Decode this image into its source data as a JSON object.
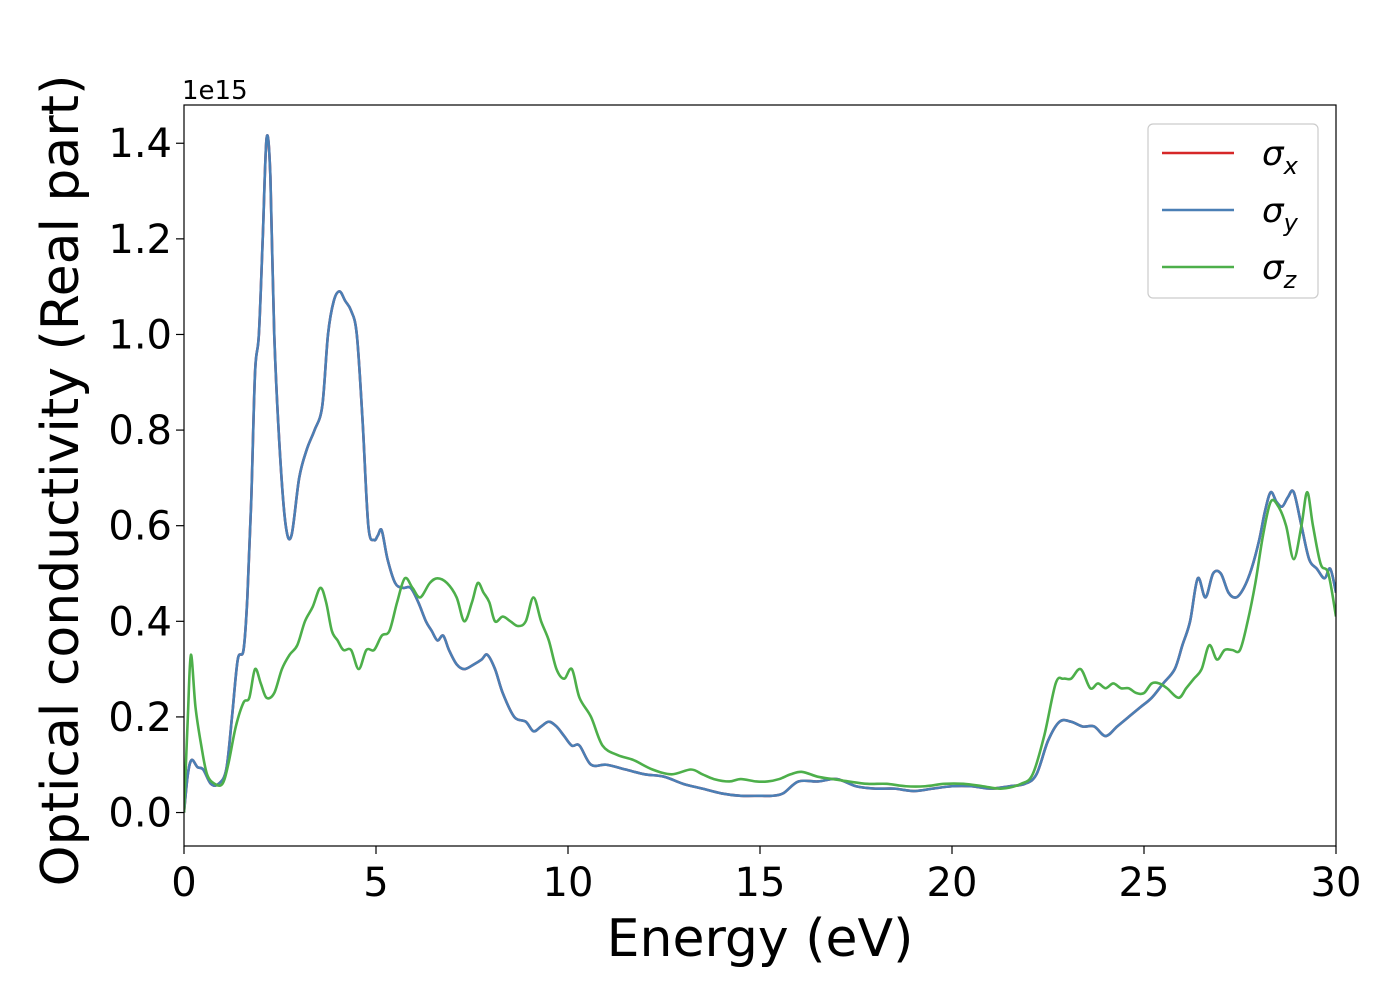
{
  "chart_data": {
    "type": "line",
    "title": "",
    "xlabel": "Energy (eV)",
    "ylabel": "Optical conductivity (Real part)",
    "y_offset_text": "1e15",
    "y_multiplier": 1000000000000000.0,
    "xlim": [
      0,
      30
    ],
    "ylim": [
      -0.07,
      1.48
    ],
    "x_ticks": [
      0,
      5,
      10,
      15,
      20,
      25,
      30
    ],
    "x_tick_labels": [
      "0",
      "5",
      "10",
      "15",
      "20",
      "25",
      "30"
    ],
    "y_ticks": [
      0.0,
      0.2,
      0.4,
      0.6,
      0.8,
      1.0,
      1.2,
      1.4
    ],
    "y_tick_labels": [
      "0.0",
      "0.2",
      "0.4",
      "0.6",
      "0.8",
      "1.0",
      "1.2",
      "1.4"
    ],
    "grid": false,
    "legend_position": "top-right",
    "series": [
      {
        "name": "σx",
        "legend_symbol": "σ",
        "legend_subscript": "x",
        "color": "#d62728",
        "x": [
          0,
          0.1,
          0.2,
          0.35,
          0.5,
          0.7,
          0.9,
          1.1,
          1.25,
          1.4,
          1.55,
          1.65,
          1.75,
          1.85,
          1.95,
          2.05,
          2.15,
          2.25,
          2.35,
          2.5,
          2.65,
          2.8,
          3.0,
          3.2,
          3.4,
          3.6,
          3.75,
          3.9,
          4.05,
          4.2,
          4.35,
          4.5,
          4.65,
          4.8,
          4.95,
          5.05,
          5.15,
          5.3,
          5.5,
          5.7,
          5.9,
          6.1,
          6.3,
          6.45,
          6.6,
          6.75,
          6.9,
          7.1,
          7.3,
          7.55,
          7.75,
          7.9,
          8.1,
          8.3,
          8.6,
          8.9,
          9.1,
          9.3,
          9.5,
          9.7,
          9.9,
          10.1,
          10.3,
          10.6,
          11.0,
          11.5,
          12.0,
          12.5,
          13.0,
          13.5,
          14.0,
          14.5,
          15.0,
          15.3,
          15.6,
          16.0,
          16.5,
          17.0,
          17.5,
          18.0,
          18.5,
          19.0,
          19.5,
          20.0,
          20.5,
          21.0,
          21.5,
          21.9,
          22.2,
          22.5,
          22.8,
          23.1,
          23.4,
          23.7,
          24.0,
          24.3,
          24.6,
          24.9,
          25.2,
          25.5,
          25.8,
          26.0,
          26.2,
          26.4,
          26.6,
          26.8,
          27.0,
          27.2,
          27.4,
          27.6,
          27.8,
          28.0,
          28.15,
          28.3,
          28.45,
          28.6,
          28.75,
          28.9,
          29.1,
          29.3,
          29.5,
          29.7,
          29.85,
          30.0
        ],
        "values": [
          0.0,
          0.08,
          0.11,
          0.095,
          0.09,
          0.06,
          0.06,
          0.09,
          0.2,
          0.32,
          0.34,
          0.45,
          0.65,
          0.92,
          1.0,
          1.2,
          1.41,
          1.33,
          1.0,
          0.75,
          0.6,
          0.58,
          0.7,
          0.76,
          0.8,
          0.85,
          1.0,
          1.07,
          1.09,
          1.07,
          1.05,
          1.0,
          0.82,
          0.6,
          0.57,
          0.58,
          0.59,
          0.53,
          0.48,
          0.47,
          0.47,
          0.44,
          0.4,
          0.38,
          0.36,
          0.37,
          0.34,
          0.31,
          0.3,
          0.31,
          0.32,
          0.33,
          0.3,
          0.25,
          0.2,
          0.19,
          0.17,
          0.18,
          0.19,
          0.18,
          0.16,
          0.14,
          0.14,
          0.1,
          0.1,
          0.09,
          0.08,
          0.075,
          0.06,
          0.05,
          0.04,
          0.035,
          0.035,
          0.035,
          0.04,
          0.065,
          0.065,
          0.07,
          0.055,
          0.05,
          0.05,
          0.045,
          0.05,
          0.055,
          0.055,
          0.05,
          0.055,
          0.06,
          0.08,
          0.15,
          0.19,
          0.19,
          0.18,
          0.18,
          0.16,
          0.18,
          0.2,
          0.22,
          0.24,
          0.27,
          0.3,
          0.35,
          0.4,
          0.49,
          0.45,
          0.5,
          0.5,
          0.46,
          0.45,
          0.47,
          0.51,
          0.57,
          0.63,
          0.67,
          0.65,
          0.64,
          0.66,
          0.67,
          0.6,
          0.53,
          0.51,
          0.49,
          0.51,
          0.46
        ]
      },
      {
        "name": "σy",
        "legend_symbol": "σ",
        "legend_subscript": "y",
        "color": "#4a7fb5",
        "x": [
          0,
          0.1,
          0.2,
          0.35,
          0.5,
          0.7,
          0.9,
          1.1,
          1.25,
          1.4,
          1.55,
          1.65,
          1.75,
          1.85,
          1.95,
          2.05,
          2.15,
          2.25,
          2.35,
          2.5,
          2.65,
          2.8,
          3.0,
          3.2,
          3.4,
          3.6,
          3.75,
          3.9,
          4.05,
          4.2,
          4.35,
          4.5,
          4.65,
          4.8,
          4.95,
          5.05,
          5.15,
          5.3,
          5.5,
          5.7,
          5.9,
          6.1,
          6.3,
          6.45,
          6.6,
          6.75,
          6.9,
          7.1,
          7.3,
          7.55,
          7.75,
          7.9,
          8.1,
          8.3,
          8.6,
          8.9,
          9.1,
          9.3,
          9.5,
          9.7,
          9.9,
          10.1,
          10.3,
          10.6,
          11.0,
          11.5,
          12.0,
          12.5,
          13.0,
          13.5,
          14.0,
          14.5,
          15.0,
          15.3,
          15.6,
          16.0,
          16.5,
          17.0,
          17.5,
          18.0,
          18.5,
          19.0,
          19.5,
          20.0,
          20.5,
          21.0,
          21.5,
          21.9,
          22.2,
          22.5,
          22.8,
          23.1,
          23.4,
          23.7,
          24.0,
          24.3,
          24.6,
          24.9,
          25.2,
          25.5,
          25.8,
          26.0,
          26.2,
          26.4,
          26.6,
          26.8,
          27.0,
          27.2,
          27.4,
          27.6,
          27.8,
          28.0,
          28.15,
          28.3,
          28.45,
          28.6,
          28.75,
          28.9,
          29.1,
          29.3,
          29.5,
          29.7,
          29.85,
          30.0
        ],
        "values": [
          0.0,
          0.08,
          0.11,
          0.095,
          0.09,
          0.06,
          0.06,
          0.09,
          0.2,
          0.32,
          0.34,
          0.45,
          0.65,
          0.92,
          1.0,
          1.2,
          1.41,
          1.33,
          1.0,
          0.75,
          0.6,
          0.58,
          0.7,
          0.76,
          0.8,
          0.85,
          1.0,
          1.07,
          1.09,
          1.07,
          1.05,
          1.0,
          0.82,
          0.6,
          0.57,
          0.58,
          0.59,
          0.53,
          0.48,
          0.47,
          0.47,
          0.44,
          0.4,
          0.38,
          0.36,
          0.37,
          0.34,
          0.31,
          0.3,
          0.31,
          0.32,
          0.33,
          0.3,
          0.25,
          0.2,
          0.19,
          0.17,
          0.18,
          0.19,
          0.18,
          0.16,
          0.14,
          0.14,
          0.1,
          0.1,
          0.09,
          0.08,
          0.075,
          0.06,
          0.05,
          0.04,
          0.035,
          0.035,
          0.035,
          0.04,
          0.065,
          0.065,
          0.07,
          0.055,
          0.05,
          0.05,
          0.045,
          0.05,
          0.055,
          0.055,
          0.05,
          0.055,
          0.06,
          0.08,
          0.15,
          0.19,
          0.19,
          0.18,
          0.18,
          0.16,
          0.18,
          0.2,
          0.22,
          0.24,
          0.27,
          0.3,
          0.35,
          0.4,
          0.49,
          0.45,
          0.5,
          0.5,
          0.46,
          0.45,
          0.47,
          0.51,
          0.57,
          0.63,
          0.67,
          0.65,
          0.64,
          0.66,
          0.67,
          0.6,
          0.53,
          0.51,
          0.49,
          0.51,
          0.46
        ]
      },
      {
        "name": "σz",
        "legend_symbol": "σ",
        "legend_subscript": "z",
        "color": "#4daf4a",
        "x": [
          0,
          0.1,
          0.18,
          0.3,
          0.45,
          0.6,
          0.8,
          1.0,
          1.15,
          1.35,
          1.55,
          1.7,
          1.85,
          2.0,
          2.15,
          2.35,
          2.55,
          2.75,
          2.95,
          3.15,
          3.35,
          3.55,
          3.7,
          3.85,
          4.0,
          4.15,
          4.35,
          4.55,
          4.75,
          4.95,
          5.15,
          5.35,
          5.55,
          5.75,
          5.95,
          6.15,
          6.4,
          6.6,
          6.85,
          7.1,
          7.3,
          7.5,
          7.65,
          7.8,
          7.95,
          8.1,
          8.3,
          8.5,
          8.7,
          8.9,
          9.1,
          9.3,
          9.5,
          9.7,
          9.9,
          10.1,
          10.3,
          10.6,
          10.9,
          11.3,
          11.7,
          12.2,
          12.7,
          13.2,
          13.5,
          13.8,
          14.2,
          14.5,
          14.9,
          15.2,
          15.5,
          15.8,
          16.1,
          16.5,
          16.9,
          17.3,
          17.8,
          18.3,
          18.8,
          19.3,
          19.8,
          20.3,
          20.8,
          21.3,
          21.8,
          22.1,
          22.4,
          22.7,
          22.9,
          23.1,
          23.35,
          23.6,
          23.8,
          24.0,
          24.2,
          24.4,
          24.6,
          24.8,
          25.0,
          25.2,
          25.4,
          25.6,
          25.9,
          26.1,
          26.3,
          26.5,
          26.7,
          26.9,
          27.1,
          27.3,
          27.5,
          27.7,
          27.9,
          28.1,
          28.3,
          28.5,
          28.7,
          28.9,
          29.1,
          29.25,
          29.4,
          29.6,
          29.8,
          30.0
        ],
        "values": [
          0.0,
          0.2,
          0.33,
          0.22,
          0.14,
          0.08,
          0.06,
          0.06,
          0.1,
          0.18,
          0.23,
          0.24,
          0.3,
          0.27,
          0.24,
          0.25,
          0.3,
          0.33,
          0.35,
          0.4,
          0.43,
          0.47,
          0.44,
          0.38,
          0.36,
          0.34,
          0.34,
          0.3,
          0.34,
          0.34,
          0.37,
          0.38,
          0.44,
          0.49,
          0.47,
          0.45,
          0.48,
          0.49,
          0.48,
          0.45,
          0.4,
          0.44,
          0.48,
          0.46,
          0.44,
          0.4,
          0.41,
          0.4,
          0.39,
          0.4,
          0.45,
          0.4,
          0.36,
          0.3,
          0.28,
          0.3,
          0.24,
          0.2,
          0.14,
          0.12,
          0.11,
          0.09,
          0.08,
          0.09,
          0.08,
          0.07,
          0.065,
          0.07,
          0.065,
          0.065,
          0.07,
          0.08,
          0.085,
          0.075,
          0.07,
          0.065,
          0.06,
          0.06,
          0.055,
          0.055,
          0.06,
          0.06,
          0.055,
          0.05,
          0.06,
          0.08,
          0.16,
          0.27,
          0.28,
          0.28,
          0.3,
          0.26,
          0.27,
          0.26,
          0.27,
          0.26,
          0.26,
          0.25,
          0.25,
          0.27,
          0.27,
          0.26,
          0.24,
          0.26,
          0.28,
          0.3,
          0.35,
          0.32,
          0.34,
          0.34,
          0.34,
          0.4,
          0.48,
          0.58,
          0.65,
          0.64,
          0.6,
          0.53,
          0.6,
          0.67,
          0.6,
          0.52,
          0.5,
          0.41
        ]
      }
    ]
  }
}
